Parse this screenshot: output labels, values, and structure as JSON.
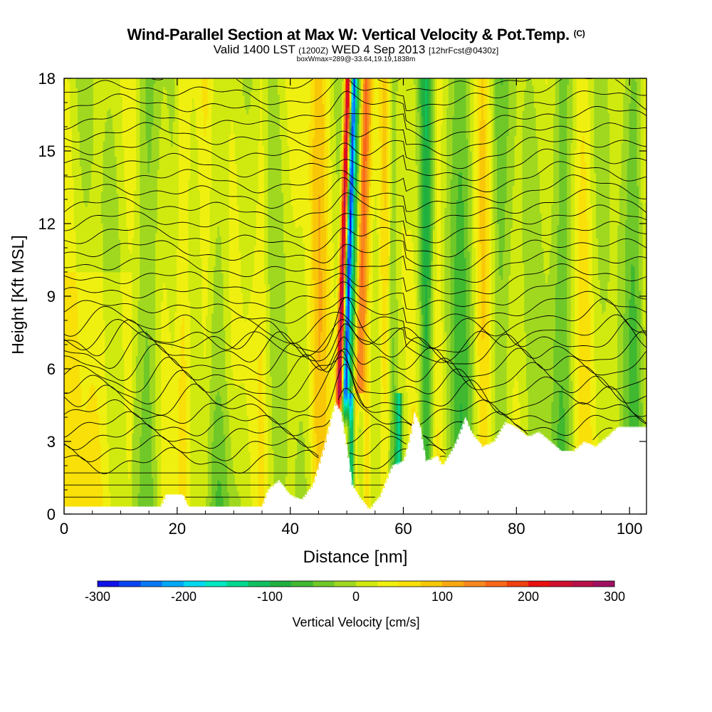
{
  "title": {
    "main": "Wind-Parallel Section at Max W: Vertical Velocity & Pot.Temp.",
    "copyright": "(C)",
    "valid_prefix": "Valid 1400 LST",
    "valid_z": "(1200Z)",
    "valid_date": "WED 4 Sep 2013",
    "forecast": "[12hrFcst@0430z]",
    "box": "boxWmax=289@-33.64,19.19,1838m"
  },
  "chart_data": {
    "type": "heatmap",
    "title": "Wind-Parallel Section at Max W: Vertical Velocity & Pot.Temp.",
    "xlabel": "Distance [nm]",
    "ylabel": "Height [Kft MSL]",
    "xlim": [
      0,
      103
    ],
    "ylim": [
      0,
      18
    ],
    "x_ticks": [
      "0",
      "20",
      "40",
      "60",
      "80",
      "100"
    ],
    "y_ticks": [
      "0",
      "3",
      "6",
      "9",
      "12",
      "15",
      "18"
    ],
    "colorbar": {
      "label": "Vertical Velocity [cm/s]",
      "range": [
        -300,
        300
      ],
      "tick_labels": [
        "-300",
        "-200",
        "-100",
        "0",
        "100",
        "200",
        "300"
      ],
      "colors": [
        "#1010e8",
        "#0a44f0",
        "#0a78f5",
        "#00a8f8",
        "#00d8f0",
        "#00e8c0",
        "#00d890",
        "#10c060",
        "#20b040",
        "#40b830",
        "#70c828",
        "#a0d820",
        "#d0ea10",
        "#f0f010",
        "#f8e008",
        "#f8c808",
        "#f8a810",
        "#f88820",
        "#f86818",
        "#f04010",
        "#e81010",
        "#d01030",
        "#b81048",
        "#a01060"
      ]
    },
    "terrain_kft": [
      [
        0,
        0.3
      ],
      [
        17,
        0.3
      ],
      [
        18,
        0.8
      ],
      [
        21,
        0.8
      ],
      [
        22,
        0.3
      ],
      [
        35,
        0.3
      ],
      [
        36,
        1.0
      ],
      [
        38,
        1.4
      ],
      [
        40,
        0.8
      ],
      [
        42,
        0.6
      ],
      [
        44,
        1.2
      ],
      [
        45,
        2.0
      ],
      [
        46,
        2.8
      ],
      [
        47,
        3.8
      ],
      [
        48,
        4.6
      ],
      [
        49,
        4.2
      ],
      [
        50,
        2.8
      ],
      [
        51,
        1.2
      ],
      [
        52,
        0.8
      ],
      [
        53,
        0.5
      ],
      [
        54,
        0.2
      ],
      [
        56,
        0.8
      ],
      [
        58,
        2.0
      ],
      [
        60,
        2.2
      ],
      [
        61,
        3.0
      ],
      [
        62,
        4.2
      ],
      [
        63,
        3.6
      ],
      [
        64,
        2.2
      ],
      [
        66,
        2.4
      ],
      [
        67,
        2.0
      ],
      [
        69,
        2.8
      ],
      [
        71,
        4.0
      ],
      [
        72,
        3.4
      ],
      [
        74,
        2.8
      ],
      [
        76,
        3.0
      ],
      [
        78,
        3.8
      ],
      [
        80,
        3.6
      ],
      [
        82,
        3.2
      ],
      [
        84,
        3.4
      ],
      [
        86,
        3.0
      ],
      [
        88,
        2.6
      ],
      [
        90,
        2.6
      ],
      [
        92,
        3.0
      ],
      [
        94,
        2.8
      ],
      [
        96,
        3.2
      ],
      [
        98,
        3.6
      ],
      [
        103,
        3.6
      ]
    ]
  }
}
